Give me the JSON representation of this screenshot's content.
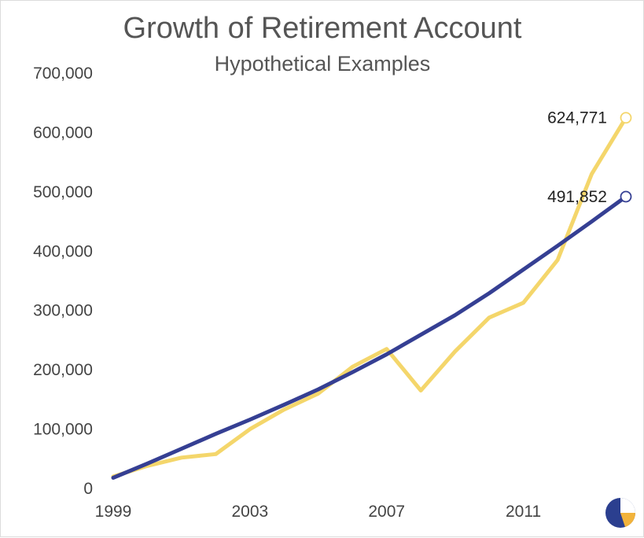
{
  "chart_data": {
    "type": "line",
    "title": "Growth of Retirement Account",
    "subtitle": "Hypothetical Examples",
    "xlabel": "",
    "ylabel": "",
    "x": [
      1999,
      2000,
      2001,
      2002,
      2003,
      2004,
      2005,
      2006,
      2007,
      2008,
      2009,
      2010,
      2011,
      2012,
      2013,
      2014
    ],
    "xlim": [
      1999,
      2014
    ],
    "ylim": [
      0,
      700000
    ],
    "x_ticks": [
      "1999",
      "2003",
      "2007",
      "2011"
    ],
    "y_ticks": [
      "0",
      "100,000",
      "200,000",
      "300,000",
      "400,000",
      "500,000",
      "600,000",
      "700,000"
    ],
    "grid": false,
    "legend": "none",
    "series": [
      {
        "color": "#353f93",
        "values": [
          18000,
          42000,
          67000,
          92000,
          116000,
          141000,
          167000,
          196000,
          226000,
          259000,
          292000,
          329000,
          369000,
          409000,
          450000,
          491852
        ],
        "end_label": "491,852"
      },
      {
        "color": "#f4d66b",
        "values": [
          20000,
          38000,
          52000,
          58000,
          100000,
          133000,
          160000,
          205000,
          235000,
          165000,
          231000,
          288000,
          313000,
          385000,
          530000,
          624771
        ],
        "end_label": "624,771"
      }
    ],
    "logo": "pie-chart-logo-icon"
  }
}
